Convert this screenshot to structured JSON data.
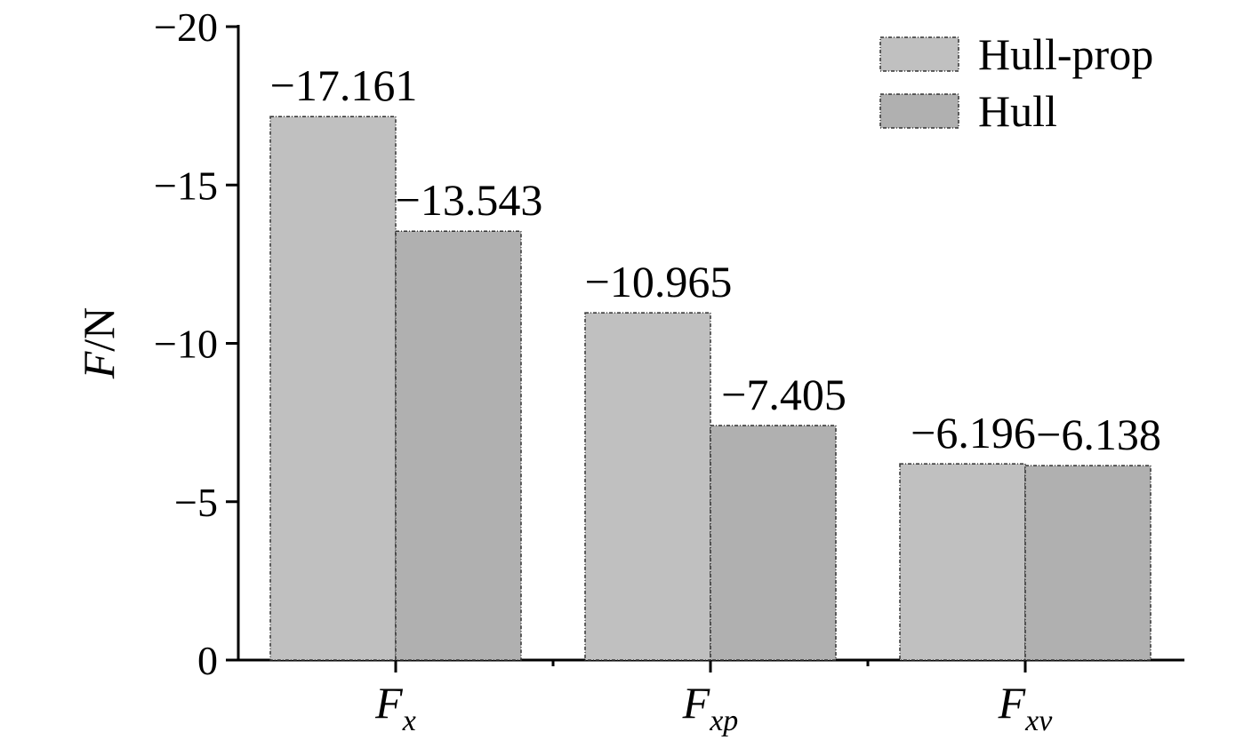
{
  "chart_data": {
    "type": "bar",
    "y_label": "F/N",
    "categories": [
      "Fx",
      "Fxp",
      "Fxv"
    ],
    "series": [
      {
        "name": "Hull-prop",
        "color": "#c0c0c0",
        "values": [
          -17.161,
          -10.965,
          -6.196
        ],
        "value_labels": [
          "−17.161",
          "−10.965",
          "−6.196"
        ]
      },
      {
        "name": "Hull",
        "color": "#b0b0b0",
        "values": [
          -13.543,
          -7.405,
          -6.138
        ],
        "value_labels": [
          "−13.543",
          "−7.405",
          "−6.138"
        ]
      }
    ],
    "ylim": [
      0,
      -20
    ],
    "yticks": [
      0,
      {
        "value": -5,
        "label": "−5"
      },
      {
        "value": -10,
        "label": "−10"
      },
      {
        "value": -15,
        "label": "−15"
      },
      {
        "value": -20,
        "label": "−20"
      }
    ],
    "legend": "upper-right"
  }
}
